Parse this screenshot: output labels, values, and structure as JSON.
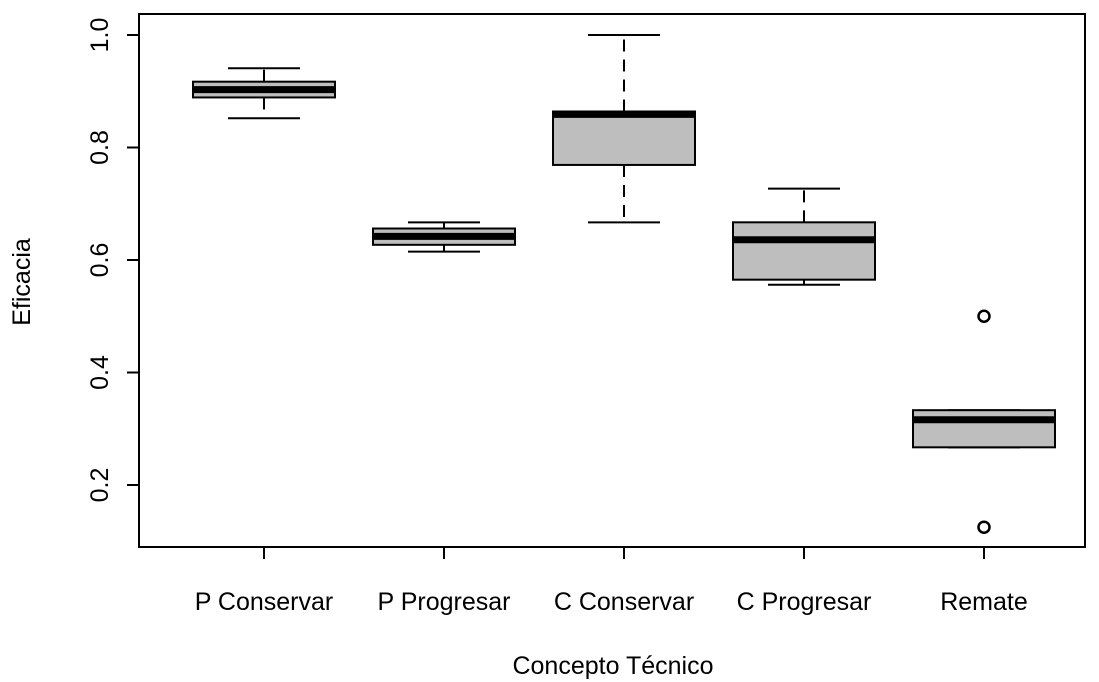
{
  "chart_data": {
    "type": "boxplot",
    "title": "",
    "xlabel": "Concepto Técnico",
    "ylabel": "Eficacia",
    "ylim": [
      0.1,
      1.02
    ],
    "yticks": [
      "0.2",
      "0.4",
      "0.6",
      "0.8",
      "1.0"
    ],
    "grid": false,
    "box_color": "#bebebe",
    "categories": [
      "P Conservar",
      "P Progresar",
      "C Conservar",
      "C Progresar",
      "Remate"
    ],
    "boxes": [
      {
        "category": "P Conservar",
        "whisker_low": 0.852,
        "q1": 0.889,
        "median": 0.903,
        "q3": 0.917,
        "whisker_high": 0.941,
        "outliers": []
      },
      {
        "category": "P Progresar",
        "whisker_low": 0.615,
        "q1": 0.627,
        "median": 0.642,
        "q3": 0.656,
        "whisker_high": 0.667,
        "outliers": []
      },
      {
        "category": "C Conservar",
        "whisker_low": 0.667,
        "q1": 0.769,
        "median": 0.859,
        "q3": 0.864,
        "whisker_high": 1.0,
        "outliers": []
      },
      {
        "category": "C Progresar",
        "whisker_low": 0.556,
        "q1": 0.565,
        "median": 0.636,
        "q3": 0.667,
        "whisker_high": 0.727,
        "outliers": []
      },
      {
        "category": "Remate",
        "whisker_low": 0.267,
        "q1": 0.267,
        "median": 0.316,
        "q3": 0.333,
        "whisker_high": 0.333,
        "outliers": [
          0.5,
          0.125
        ]
      }
    ]
  }
}
